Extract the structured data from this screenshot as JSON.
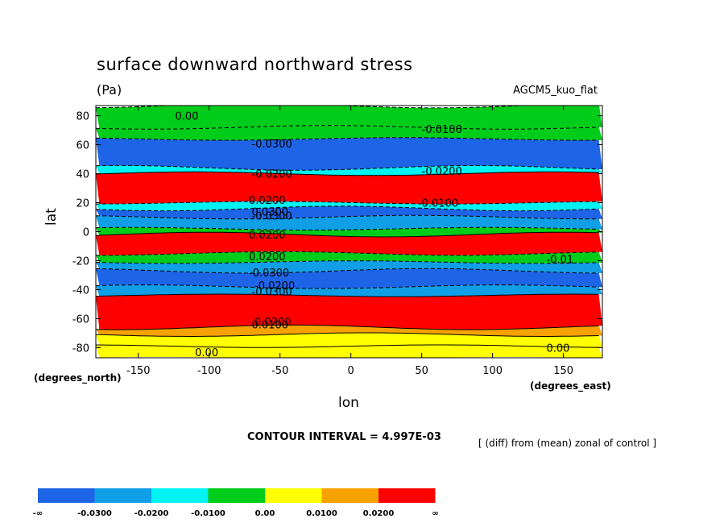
{
  "title": "surface downward northward stress",
  "units": "(Pa)",
  "model_label": "AGCM5_kuo_flat",
  "contour_interval": "CONTOUR INTERVAL = 4.997E-03",
  "diff_note": "[ (diff) from (mean) zonal of control ]",
  "chart_data": {
    "type": "heatmap",
    "ylabel": "lat",
    "y_units": "(degrees_north)",
    "xlabel": "lon",
    "x_units": "(degrees_east)",
    "xlim": [
      -180,
      177.5
    ],
    "ylim": [
      -87,
      87
    ],
    "x_ticks": [
      {
        "v": -150,
        "t": "-150"
      },
      {
        "v": -100,
        "t": "-100"
      },
      {
        "v": -50,
        "t": "-50"
      },
      {
        "v": 0,
        "t": "0"
      },
      {
        "v": 50,
        "t": "50"
      },
      {
        "v": 100,
        "t": "100"
      },
      {
        "v": 150,
        "t": "150"
      }
    ],
    "y_ticks": [
      {
        "v": -80,
        "t": "-80"
      },
      {
        "v": -60,
        "t": "-60"
      },
      {
        "v": -40,
        "t": "-40"
      },
      {
        "v": -20,
        "t": "-20"
      },
      {
        "v": 0,
        "t": "0"
      },
      {
        "v": 20,
        "t": "20"
      },
      {
        "v": 40,
        "t": "40"
      },
      {
        "v": 60,
        "t": "60"
      },
      {
        "v": 80,
        "t": "80"
      }
    ],
    "levels": [
      "-∞",
      "-0.0300",
      "-0.0200",
      "-0.0100",
      "0.00",
      "0.0100",
      "0.0200",
      "∞"
    ],
    "colors": [
      "#1e64e6",
      "#109ee6",
      "#00f2f2",
      "#00cc1a",
      "#ffff00",
      "#f7a200",
      "#ff0000"
    ],
    "bands": [
      {
        "from": -87,
        "to": -79,
        "color_index": 4
      },
      {
        "from": -79,
        "to": -71,
        "color_index": 4
      },
      {
        "from": -71,
        "to": -66,
        "color_index": 5
      },
      {
        "from": -66,
        "to": -44,
        "color_index": 6
      },
      {
        "from": -44,
        "to": -38,
        "color_index": 1
      },
      {
        "from": -38,
        "to": -27,
        "color_index": 0
      },
      {
        "from": -27,
        "to": -21,
        "color_index": 1
      },
      {
        "from": -21,
        "to": -15,
        "color_index": 3
      },
      {
        "from": -15,
        "to": -2,
        "color_index": 6
      },
      {
        "from": -2,
        "to": 2,
        "color_index": 3
      },
      {
        "from": 2,
        "to": 10,
        "color_index": 1
      },
      {
        "from": 10,
        "to": 16,
        "color_index": 0
      },
      {
        "from": 16,
        "to": 20,
        "color_index": 2
      },
      {
        "from": 20,
        "to": 40,
        "color_index": 6
      },
      {
        "from": 40,
        "to": 44,
        "color_index": 2
      },
      {
        "from": 44,
        "to": 64,
        "color_index": 0
      },
      {
        "from": 64,
        "to": 72,
        "color_index": 3
      },
      {
        "from": 72,
        "to": 87,
        "color_index": 3
      }
    ],
    "contour_labels": [
      {
        "text": "0.00",
        "lon": -110,
        "lat": -83
      },
      {
        "text": "0.00",
        "lon": 138,
        "lat": -80
      },
      {
        "text": "0.0100",
        "lon": -70,
        "lat": -64
      },
      {
        "text": "0.0200",
        "lon": -68,
        "lat": -62
      },
      {
        "text": "-0.0300",
        "lon": -70,
        "lat": -41
      },
      {
        "text": "-0.0200",
        "lon": -68,
        "lat": -37
      },
      {
        "text": "-0.0300",
        "lon": -72,
        "lat": -28
      },
      {
        "text": "0.0200",
        "lon": -72,
        "lat": -17
      },
      {
        "text": "-0.01",
        "lon": 138,
        "lat": -19
      },
      {
        "text": "0.0200",
        "lon": -72,
        "lat": -2
      },
      {
        "text": "-0.0300",
        "lon": -70,
        "lat": 11
      },
      {
        "text": "0.0300",
        "lon": -70,
        "lat": 14
      },
      {
        "text": "0.0200",
        "lon": -72,
        "lat": 22
      },
      {
        "text": "0.0100",
        "lon": 50,
        "lat": 20
      },
      {
        "text": "-0.0200",
        "lon": -70,
        "lat": 40
      },
      {
        "text": "-0.0200",
        "lon": 50,
        "lat": 42
      },
      {
        "text": "-0.0300",
        "lon": -70,
        "lat": 61
      },
      {
        "text": "-0.0100",
        "lon": 50,
        "lat": 71
      },
      {
        "text": "0.00",
        "lon": -124,
        "lat": 80
      }
    ]
  }
}
